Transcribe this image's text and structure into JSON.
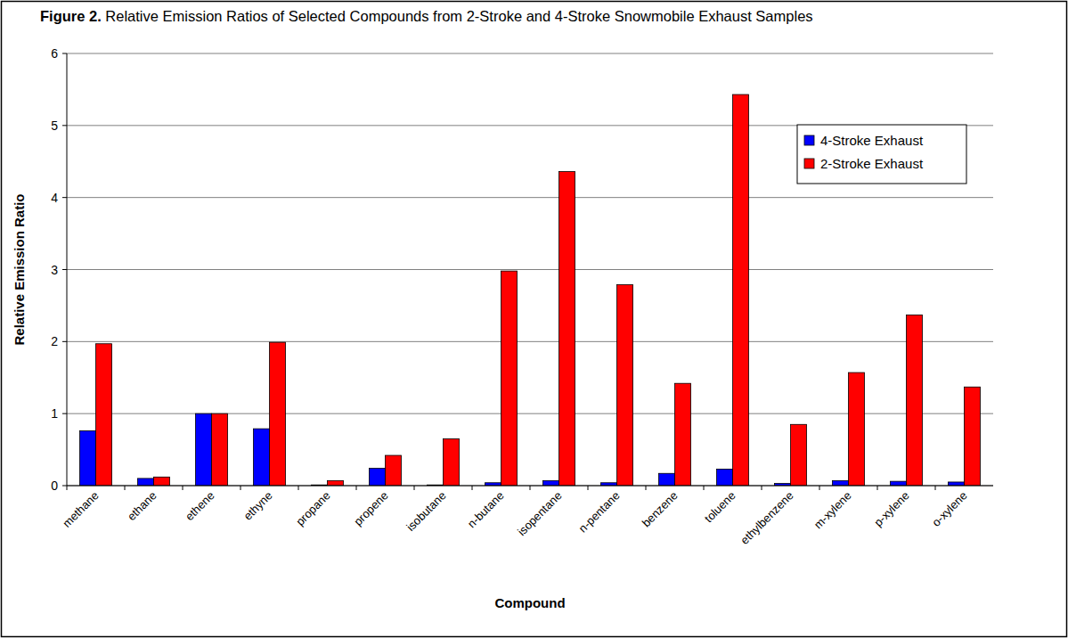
{
  "chart_data": {
    "type": "bar",
    "title": "Figure 2.  Relative Emission Ratios of Selected Compounds from 2-Stroke and 4-Stroke Snowmobile Exhaust Samples",
    "x_label": "Compound",
    "y_label": "Relative Emission Ratio",
    "categories": [
      "methane",
      "ethane",
      "ethene",
      "ethyne",
      "propane",
      "propene",
      "isobutane",
      "n-butane",
      "isopentane",
      "n-pentane",
      "benzene",
      "toluene",
      "ethylbenzene",
      "m-xylene",
      "p-xylene",
      "o-xylene"
    ],
    "series": [
      {
        "name": "4-Stroke Exhaust",
        "color": "#0000ff",
        "values": [
          0.76,
          0.1,
          1.0,
          0.79,
          0.01,
          0.24,
          0.01,
          0.04,
          0.07,
          0.04,
          0.17,
          0.23,
          0.03,
          0.07,
          0.06,
          0.05
        ]
      },
      {
        "name": "2-Stroke Exhaust",
        "color": "#ff0000",
        "values": [
          1.97,
          0.12,
          1.0,
          1.99,
          0.07,
          0.42,
          0.65,
          2.98,
          4.36,
          2.79,
          1.42,
          5.43,
          0.85,
          1.57,
          2.37,
          1.37
        ]
      }
    ],
    "ylim": [
      0,
      6
    ],
    "yticks": [
      0,
      1,
      2,
      3,
      4,
      5,
      6
    ],
    "grid": true,
    "legend": "upper-right"
  }
}
